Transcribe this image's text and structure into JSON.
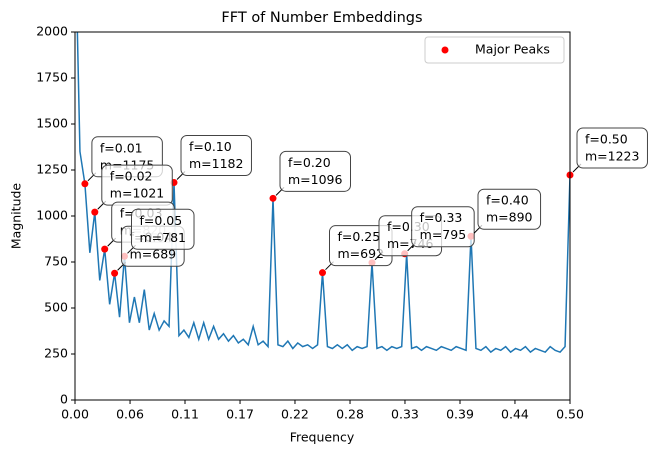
{
  "chart_data": {
    "type": "line",
    "title": "FFT of Number Embeddings",
    "x_label": "Frequency",
    "y_label": "Magnitude",
    "x": [
      0,
      0.005,
      0.01,
      0.015,
      0.02,
      0.025,
      0.03,
      0.035,
      0.04,
      0.045,
      0.05,
      0.055,
      0.06,
      0.065,
      0.07,
      0.075,
      0.08,
      0.085,
      0.09,
      0.095,
      0.1,
      0.105,
      0.11,
      0.115,
      0.12,
      0.125,
      0.13,
      0.135,
      0.14,
      0.145,
      0.15,
      0.155,
      0.16,
      0.165,
      0.17,
      0.175,
      0.18,
      0.185,
      0.19,
      0.195,
      0.2,
      0.205,
      0.21,
      0.215,
      0.22,
      0.225,
      0.23,
      0.235,
      0.24,
      0.245,
      0.25,
      0.255,
      0.26,
      0.265,
      0.27,
      0.275,
      0.28,
      0.285,
      0.29,
      0.295,
      0.3,
      0.305,
      0.31,
      0.315,
      0.32,
      0.325,
      0.33,
      0.335,
      0.34,
      0.345,
      0.35,
      0.355,
      0.36,
      0.365,
      0.37,
      0.375,
      0.38,
      0.385,
      0.39,
      0.395,
      0.4,
      0.405,
      0.41,
      0.415,
      0.42,
      0.425,
      0.43,
      0.435,
      0.44,
      0.445,
      0.45,
      0.455,
      0.46,
      0.465,
      0.47,
      0.475,
      0.48,
      0.485,
      0.49,
      0.495,
      0.5
    ],
    "series": [
      {
        "color": "#1f77b4",
        "values": [
          2600,
          1350,
          1175,
          800,
          1021,
          650,
          820,
          520,
          689,
          450,
          781,
          420,
          560,
          420,
          600,
          380,
          470,
          380,
          430,
          400,
          1182,
          350,
          380,
          340,
          420,
          330,
          420,
          330,
          400,
          330,
          360,
          320,
          350,
          310,
          330,
          300,
          400,
          300,
          320,
          290,
          1096,
          300,
          290,
          320,
          280,
          310,
          290,
          300,
          280,
          300,
          692,
          290,
          280,
          300,
          280,
          300,
          270,
          290,
          280,
          290,
          746,
          280,
          290,
          270,
          290,
          280,
          290,
          795,
          280,
          290,
          270,
          290,
          280,
          270,
          290,
          280,
          270,
          290,
          280,
          270,
          890,
          280,
          270,
          290,
          260,
          280,
          270,
          290,
          260,
          280,
          270,
          290,
          260,
          280,
          270,
          260,
          290,
          270,
          260,
          290,
          1223
        ]
      },
      {
        "name": "Major Peaks",
        "color": "#ff0000",
        "type": "scatter",
        "x": [
          0.01,
          0.02,
          0.03,
          0.04,
          0.05,
          0.1,
          0.2,
          0.25,
          0.3,
          0.333,
          0.4,
          0.5
        ],
        "values": [
          1175,
          1021,
          820,
          689,
          781,
          1182,
          1096,
          692,
          746,
          795,
          890,
          1223
        ],
        "x_labels": [
          "f=0.01",
          "f=0.02",
          "f=0.03",
          "f=0.04",
          "f=0.05",
          "f=0.10",
          "f=0.20",
          "f=0.25",
          "f=0.30",
          "f=0.33",
          "f=0.40",
          "f=0.50"
        ],
        "value_labels": [
          "m=1175",
          "m=1021",
          "m=820",
          "m=689",
          "m=781",
          "m=1182",
          "m=1096",
          "m=692",
          "m=746",
          "m=795",
          "m=890",
          "m=1223"
        ]
      }
    ],
    "xlim": [
      0,
      0.5
    ],
    "xticks": [
      {
        "value": 0,
        "label": "0.00"
      },
      {
        "value": 0.0556,
        "label": "0.06"
      },
      {
        "value": 0.1111,
        "label": "0.11"
      },
      {
        "value": 0.1667,
        "label": "0.17"
      },
      {
        "value": 0.2222,
        "label": "0.22"
      },
      {
        "value": 0.2778,
        "label": "0.28"
      },
      {
        "value": 0.3333,
        "label": "0.33"
      },
      {
        "value": 0.3889,
        "label": "0.39"
      },
      {
        "value": 0.4444,
        "label": "0.44"
      },
      {
        "value": 0.5,
        "label": "0.50"
      }
    ],
    "ylim": [
      0,
      2000
    ],
    "yticks": [
      0,
      250,
      500,
      750,
      1000,
      1250,
      1500,
      1750,
      2000
    ],
    "legend": "upper right"
  }
}
